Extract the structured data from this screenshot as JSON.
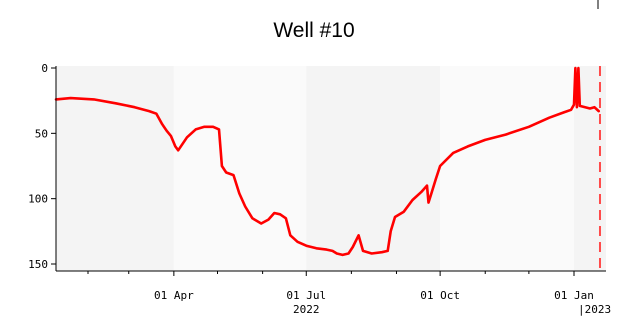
{
  "chart_data": {
    "type": "line",
    "title": "Well #10",
    "xlabel": "",
    "ylabel": "",
    "x_tick_labels": [
      "01 Apr",
      "01 Jul",
      "01 Oct",
      "01 Jan"
    ],
    "x_tick_dates": [
      "2022-04-01",
      "2022-07-01",
      "2022-10-01",
      "2023-01-01"
    ],
    "year_labels": [
      {
        "label": "2022",
        "date": "2022-07-01"
      },
      {
        "label": "2023",
        "date": "2023-01-01"
      }
    ],
    "year_marker_date": "2023-01-01",
    "xlim": [
      "2022-01-10",
      "2023-01-23"
    ],
    "ylim": [
      0,
      155
    ],
    "y_inverted": true,
    "y_ticks": [
      0,
      50,
      100,
      150
    ],
    "grid": false,
    "shaded_bands": [
      {
        "start": "2022-01-10",
        "end": "2022-04-01",
        "color": "#f4f4f4"
      },
      {
        "start": "2022-04-01",
        "end": "2022-07-01",
        "color": "#fafafa"
      },
      {
        "start": "2022-07-01",
        "end": "2022-10-01",
        "color": "#f4f4f4"
      },
      {
        "start": "2022-10-01",
        "end": "2023-01-01",
        "color": "#fafafa"
      },
      {
        "start": "2023-01-01",
        "end": "2023-01-23",
        "color": "#f4f4f4"
      }
    ],
    "series": [
      {
        "color": "#ff0000",
        "points": [
          [
            "2022-01-10",
            24
          ],
          [
            "2022-01-20",
            23
          ],
          [
            "2022-02-05",
            24
          ],
          [
            "2022-02-20",
            27
          ],
          [
            "2022-03-05",
            30
          ],
          [
            "2022-03-15",
            33
          ],
          [
            "2022-03-20",
            35
          ],
          [
            "2022-03-24",
            43
          ],
          [
            "2022-03-27",
            48
          ],
          [
            "2022-03-30",
            52
          ],
          [
            "2022-04-02",
            60
          ],
          [
            "2022-04-04",
            63
          ],
          [
            "2022-04-07",
            58
          ],
          [
            "2022-04-10",
            53
          ],
          [
            "2022-04-16",
            47
          ],
          [
            "2022-04-22",
            45
          ],
          [
            "2022-04-28",
            45
          ],
          [
            "2022-05-02",
            47
          ],
          [
            "2022-05-04",
            75
          ],
          [
            "2022-05-07",
            80
          ],
          [
            "2022-05-12",
            82
          ],
          [
            "2022-05-16",
            96
          ],
          [
            "2022-05-20",
            106
          ],
          [
            "2022-05-25",
            115
          ],
          [
            "2022-05-31",
            119
          ],
          [
            "2022-06-05",
            116
          ],
          [
            "2022-06-09",
            111
          ],
          [
            "2022-06-13",
            112
          ],
          [
            "2022-06-17",
            115
          ],
          [
            "2022-06-20",
            128
          ],
          [
            "2022-06-25",
            133
          ],
          [
            "2022-07-01",
            136
          ],
          [
            "2022-07-08",
            138
          ],
          [
            "2022-07-15",
            139
          ],
          [
            "2022-07-19",
            140
          ],
          [
            "2022-07-22",
            142
          ],
          [
            "2022-07-26",
            143
          ],
          [
            "2022-07-30",
            142
          ],
          [
            "2022-08-02",
            137
          ],
          [
            "2022-08-06",
            128
          ],
          [
            "2022-08-09",
            140
          ],
          [
            "2022-08-15",
            142
          ],
          [
            "2022-08-22",
            141
          ],
          [
            "2022-08-26",
            140
          ],
          [
            "2022-08-28",
            125
          ],
          [
            "2022-08-31",
            114
          ],
          [
            "2022-09-06",
            110
          ],
          [
            "2022-09-12",
            101
          ],
          [
            "2022-09-18",
            95
          ],
          [
            "2022-09-22",
            90
          ],
          [
            "2022-09-23",
            103
          ],
          [
            "2022-09-25",
            96
          ],
          [
            "2022-09-28",
            85
          ],
          [
            "2022-10-01",
            75
          ],
          [
            "2022-10-10",
            65
          ],
          [
            "2022-10-20",
            60
          ],
          [
            "2022-11-01",
            55
          ],
          [
            "2022-11-15",
            51
          ],
          [
            "2022-12-01",
            45
          ],
          [
            "2022-12-15",
            38
          ],
          [
            "2022-12-25",
            34
          ],
          [
            "2022-12-30",
            32
          ],
          [
            "2023-01-01",
            28
          ],
          [
            "2023-01-02",
            0
          ],
          [
            "2023-01-03",
            30
          ],
          [
            "2023-01-04",
            0
          ],
          [
            "2023-01-05",
            29
          ],
          [
            "2023-01-12",
            31
          ],
          [
            "2023-01-15",
            30
          ],
          [
            "2023-01-18",
            33
          ]
        ]
      }
    ]
  }
}
